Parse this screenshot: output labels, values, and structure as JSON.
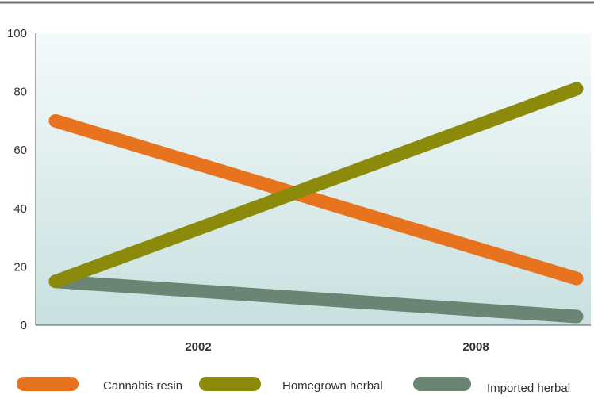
{
  "chart_data": {
    "type": "line",
    "title": "",
    "xlabel": "",
    "ylabel": "",
    "categories": [
      "2002",
      "2008"
    ],
    "ylim": [
      0,
      100
    ],
    "yticks": [
      0,
      20,
      40,
      60,
      80,
      100
    ],
    "grid": false,
    "legend_position": "bottom",
    "series": [
      {
        "name": "Cannabis resin",
        "color": "#e8731f",
        "start": 70,
        "end": 16
      },
      {
        "name": "Homegrown herbal",
        "color": "#8c8a0a",
        "start": 15,
        "end": 81
      },
      {
        "name": "Imported herbal",
        "color": "#6b8575",
        "start": 15,
        "end": 3
      }
    ],
    "colors": {
      "plot_top": "#f4fafa",
      "plot_bottom": "#c8e0df",
      "axis": "#555555",
      "top_rule": "#707070"
    }
  }
}
